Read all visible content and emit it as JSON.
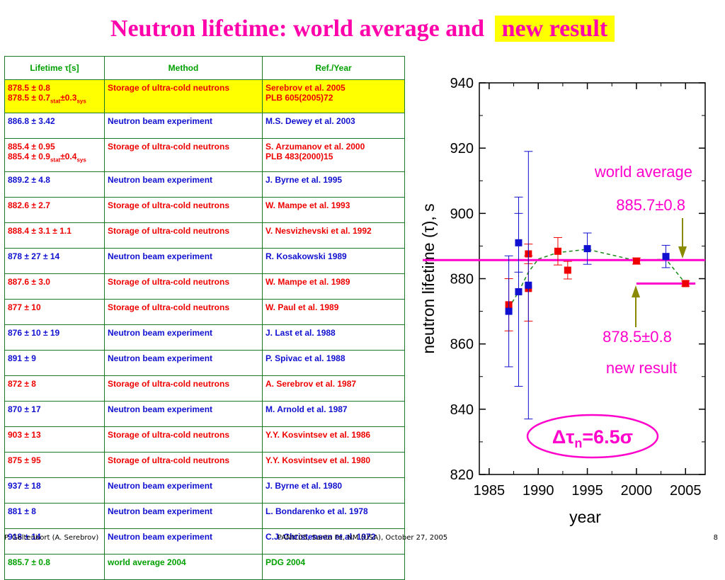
{
  "title": {
    "main": "Neutron lifetime: world average and",
    "highlight": "new result"
  },
  "table": {
    "headers": [
      "Lifetime τ[s]",
      "Method",
      "Ref./Year"
    ],
    "rows": [
      {
        "lifetime": [
          "878.5 ± 0.8",
          "878.5 ± 0.7|stat|±0.3|sys"
        ],
        "method": "Storage of ultra-cold neutrons",
        "ref": [
          "Serebrov et al. 2005",
          "PLB 605(2005)72"
        ],
        "kind": "red",
        "highlight": true
      },
      {
        "lifetime": [
          "886.8 ± 3.42"
        ],
        "method": "Neutron beam experiment",
        "ref": [
          "M.S. Dewey et al. 2003"
        ],
        "kind": "blue"
      },
      {
        "lifetime": [
          "885.4 ± 0.95",
          "885.4 ± 0.9|stat|±0.4|sys"
        ],
        "method": "Storage of ultra-cold neutrons",
        "ref": [
          "S. Arzumanov et al. 2000",
          "PLB 483(2000)15"
        ],
        "kind": "red"
      },
      {
        "lifetime": [
          "889.2 ± 4.8"
        ],
        "method": "Neutron beam experiment",
        "ref": [
          "J. Byrne et al. 1995"
        ],
        "kind": "blue"
      },
      {
        "lifetime": [
          "882.6 ± 2.7"
        ],
        "method": "Storage of ultra-cold neutrons",
        "ref": [
          "W. Mampe et al. 1993"
        ],
        "kind": "red"
      },
      {
        "lifetime": [
          "888.4 ± 3.1 ± 1.1"
        ],
        "method": "Storage of ultra-cold neutrons",
        "ref": [
          "V. Nesvizhevski et al. 1992"
        ],
        "kind": "red"
      },
      {
        "lifetime": [
          "878 ± 27 ± 14"
        ],
        "method": "Neutron beam experiment",
        "ref": [
          "R. Kosakowski 1989"
        ],
        "kind": "blue"
      },
      {
        "lifetime": [
          "887.6 ± 3.0"
        ],
        "method": "Storage of ultra-cold neutrons",
        "ref": [
          "W. Mampe et al. 1989"
        ],
        "kind": "red"
      },
      {
        "lifetime": [
          "877 ± 10"
        ],
        "method": "Storage of ultra-cold neutrons",
        "ref": [
          "W. Paul et al. 1989"
        ],
        "kind": "red"
      },
      {
        "lifetime": [
          "876 ± 10 ± 19"
        ],
        "method": "Neutron beam experiment",
        "ref": [
          "J. Last et al. 1988"
        ],
        "kind": "blue"
      },
      {
        "lifetime": [
          "891 ± 9"
        ],
        "method": "Neutron beam experiment",
        "ref": [
          "P. Spivac et al. 1988"
        ],
        "kind": "blue"
      },
      {
        "lifetime": [
          "872 ± 8"
        ],
        "method": "Storage of ultra-cold neutrons",
        "ref": [
          "A. Serebrov et al. 1987"
        ],
        "kind": "red"
      },
      {
        "lifetime": [
          "870 ± 17"
        ],
        "method": "Neutron beam experiment",
        "ref": [
          "M. Arnold et al. 1987"
        ],
        "kind": "blue"
      },
      {
        "lifetime": [
          "903 ± 13"
        ],
        "method": "Storage of ultra-cold neutrons",
        "ref": [
          "Y.Y. Kosvintsev et al. 1986"
        ],
        "kind": "red"
      },
      {
        "lifetime": [
          "875 ± 95"
        ],
        "method": "Storage of ultra-cold neutrons",
        "ref": [
          "Y.Y. Kosvintsev et al. 1980"
        ],
        "kind": "red"
      },
      {
        "lifetime": [
          "937 ± 18"
        ],
        "method": "Neutron beam experiment",
        "ref": [
          "J. Byrne et al. 1980"
        ],
        "kind": "blue"
      },
      {
        "lifetime": [
          "881 ± 8"
        ],
        "method": "Neutron beam experiment",
        "ref": [
          "L. Bondarenko et al. 1978"
        ],
        "kind": "blue"
      },
      {
        "lifetime": [
          "918 ± 14"
        ],
        "method": "Neutron beam experiment",
        "ref": [
          "C.J. Christensen et al. 1972"
        ],
        "kind": "blue"
      },
      {
        "lifetime": [
          "885.7 ± 0.8"
        ],
        "method": "world average 2004",
        "ref": [
          "PDG 2004"
        ],
        "kind": "green"
      }
    ]
  },
  "chart_data": {
    "type": "scatter",
    "xlabel": "year",
    "ylabel": "neutron lifetime (τ), s",
    "xlim": [
      1984,
      2007
    ],
    "ylim": [
      820,
      940
    ],
    "xticks": [
      "1985",
      "1990",
      "1995",
      "2000",
      "2005"
    ],
    "yticks": [
      "820",
      "840",
      "860",
      "880",
      "900",
      "920",
      "940"
    ],
    "series": [
      {
        "name": "Storage of ultra-cold neutrons",
        "color": "#ee0000",
        "points": [
          {
            "x": 1987,
            "y": 872,
            "err": 8
          },
          {
            "x": 1989,
            "y": 877,
            "err": 10
          },
          {
            "x": 1989,
            "y": 887.6,
            "err": 3.0
          },
          {
            "x": 1992,
            "y": 888.4,
            "err": 4.2
          },
          {
            "x": 1993,
            "y": 882.6,
            "err": 2.7
          },
          {
            "x": 2000,
            "y": 885.4,
            "err": 0.95
          },
          {
            "x": 2005,
            "y": 878.5,
            "err": 0.8
          }
        ]
      },
      {
        "name": "Neutron beam experiment",
        "color": "#1010d0",
        "points": [
          {
            "x": 1987,
            "y": 870,
            "err": 17
          },
          {
            "x": 1988,
            "y": 876,
            "err": 29
          },
          {
            "x": 1988,
            "y": 891,
            "err": 9
          },
          {
            "x": 1989,
            "y": 878,
            "err": 41
          },
          {
            "x": 1995,
            "y": 889.2,
            "err": 4.8
          },
          {
            "x": 2003,
            "y": 886.8,
            "err": 3.42
          }
        ]
      }
    ],
    "world_average": {
      "value": 885.7,
      "label1": "world average",
      "label2": "885.7±0.8"
    },
    "new_result": {
      "value": 878.5,
      "x": [
        2000,
        2006
      ],
      "label1": "878.5±0.8",
      "label2": "new result"
    },
    "trend": [
      [
        1987,
        871
      ],
      [
        1988,
        876
      ],
      [
        1989,
        882
      ],
      [
        1990,
        886
      ],
      [
        1992,
        888
      ],
      [
        1995,
        889
      ],
      [
        2000,
        885.5
      ],
      [
        2003,
        886
      ],
      [
        2005,
        878.5
      ]
    ],
    "annotation": {
      "prefix": "Δτ",
      "sub": "n",
      "suffix": "=6.5σ"
    }
  },
  "footer": {
    "left": "P. Geltenbort (A. Serebrov)",
    "center": "PANIC05, Santa Fe, NM (USA), October 27, 2005",
    "right": "8"
  },
  "colors": {
    "title": "#ff00aa",
    "highlight": "#ffff00",
    "border": "#1a7a2a",
    "red": "#ee0000",
    "blue": "#1010d0",
    "green": "#00a000",
    "magenta": "#ff00cc"
  }
}
